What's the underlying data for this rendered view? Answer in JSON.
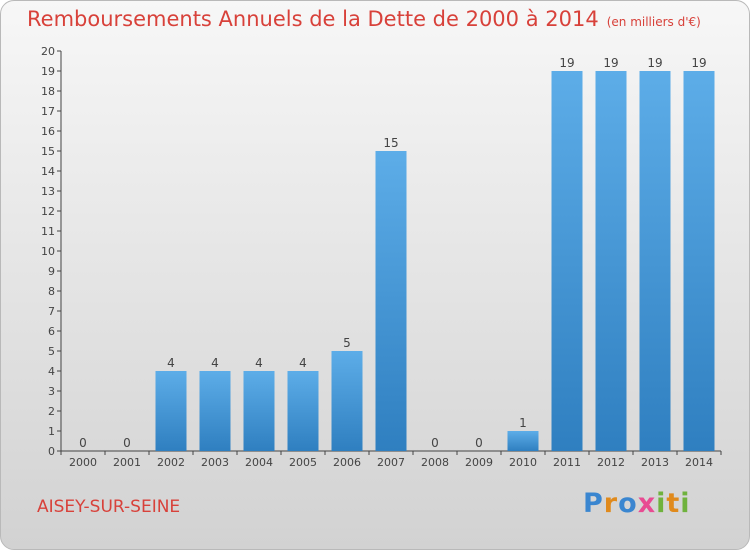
{
  "header": {
    "title": "Remboursements Annuels de la Dette de 2000 à 2014",
    "unit": "(en milliers d'€)"
  },
  "footer": {
    "town": "AISEY-SUR-SEINE",
    "logo": "Proxiti"
  },
  "colors": {
    "title": "#d8413a",
    "bar_light": "#5dade8",
    "bar_dark": "#2f7fc0"
  },
  "chart_data": {
    "type": "bar",
    "title": "Remboursements Annuels de la Dette de 2000 à 2014",
    "subtitle": "(en milliers d'€)",
    "xlabel": "",
    "ylabel": "",
    "categories": [
      "2000",
      "2001",
      "2002",
      "2003",
      "2004",
      "2005",
      "2006",
      "2007",
      "2008",
      "2009",
      "2010",
      "2011",
      "2012",
      "2013",
      "2014"
    ],
    "values": [
      0,
      0,
      4,
      4,
      4,
      4,
      5,
      15,
      0,
      0,
      1,
      19,
      19,
      19,
      19
    ],
    "ylim": [
      0,
      20
    ],
    "yticks": [
      0,
      1,
      2,
      3,
      4,
      5,
      6,
      7,
      8,
      9,
      10,
      11,
      12,
      13,
      14,
      15,
      16,
      17,
      18,
      19,
      20
    ],
    "grid": false,
    "legend": "none",
    "data_labels": true
  }
}
